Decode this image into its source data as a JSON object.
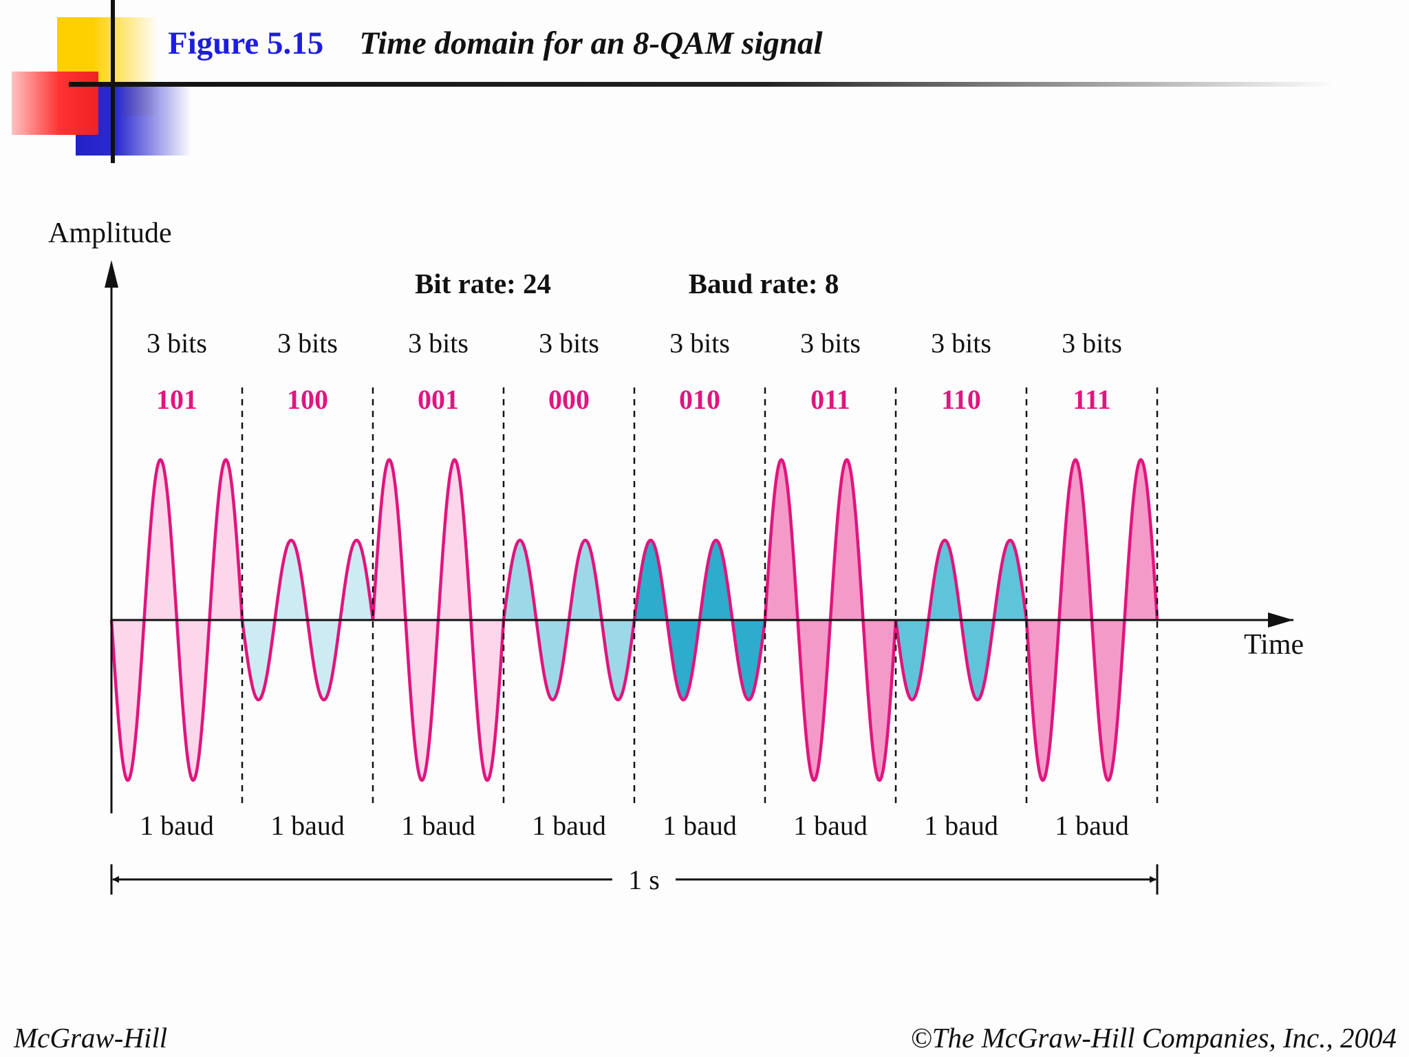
{
  "title": {
    "figure_number": "Figure 5.15",
    "caption": "Time domain for an 8-QAM signal"
  },
  "diagram": {
    "y_axis_label": "Amplitude",
    "x_axis_label": "Time",
    "bit_rate_label": "Bit rate: 24",
    "baud_rate_label": "Baud rate: 8",
    "duration_label": "1 s",
    "colors": {
      "wave_stroke": "#e0157e",
      "axis": "#111111",
      "bit_code": "#e0157e"
    },
    "segments": [
      {
        "bits_label": "3 bits",
        "code": "101",
        "baud_label": "1 baud",
        "amplitude": "high",
        "phase": 180,
        "fill": "#fcd6ea"
      },
      {
        "bits_label": "3 bits",
        "code": "100",
        "baud_label": "1 baud",
        "amplitude": "low",
        "phase": 180,
        "fill": "#cdebf2"
      },
      {
        "bits_label": "3 bits",
        "code": "001",
        "baud_label": "1 baud",
        "amplitude": "high",
        "phase": 0,
        "fill": "#fcd6ea"
      },
      {
        "bits_label": "3 bits",
        "code": "000",
        "baud_label": "1 baud",
        "amplitude": "low",
        "phase": 0,
        "fill": "#9dd8e6"
      },
      {
        "bits_label": "3 bits",
        "code": "010",
        "baud_label": "1 baud",
        "amplitude": "low",
        "phase": 0,
        "fill": "#2eaccc"
      },
      {
        "bits_label": "3 bits",
        "code": "011",
        "baud_label": "1 baud",
        "amplitude": "high",
        "phase": 0,
        "fill": "#f49ac8"
      },
      {
        "bits_label": "3 bits",
        "code": "110",
        "baud_label": "1 baud",
        "amplitude": "low",
        "phase": 180,
        "fill": "#5fc4d9"
      },
      {
        "bits_label": "3 bits",
        "code": "111",
        "baud_label": "1 baud",
        "amplitude": "high",
        "phase": 180,
        "fill": "#f49ac8"
      }
    ]
  },
  "footer": {
    "left": "McGraw-Hill",
    "right": "©The McGraw-Hill Companies, Inc., 2004"
  }
}
